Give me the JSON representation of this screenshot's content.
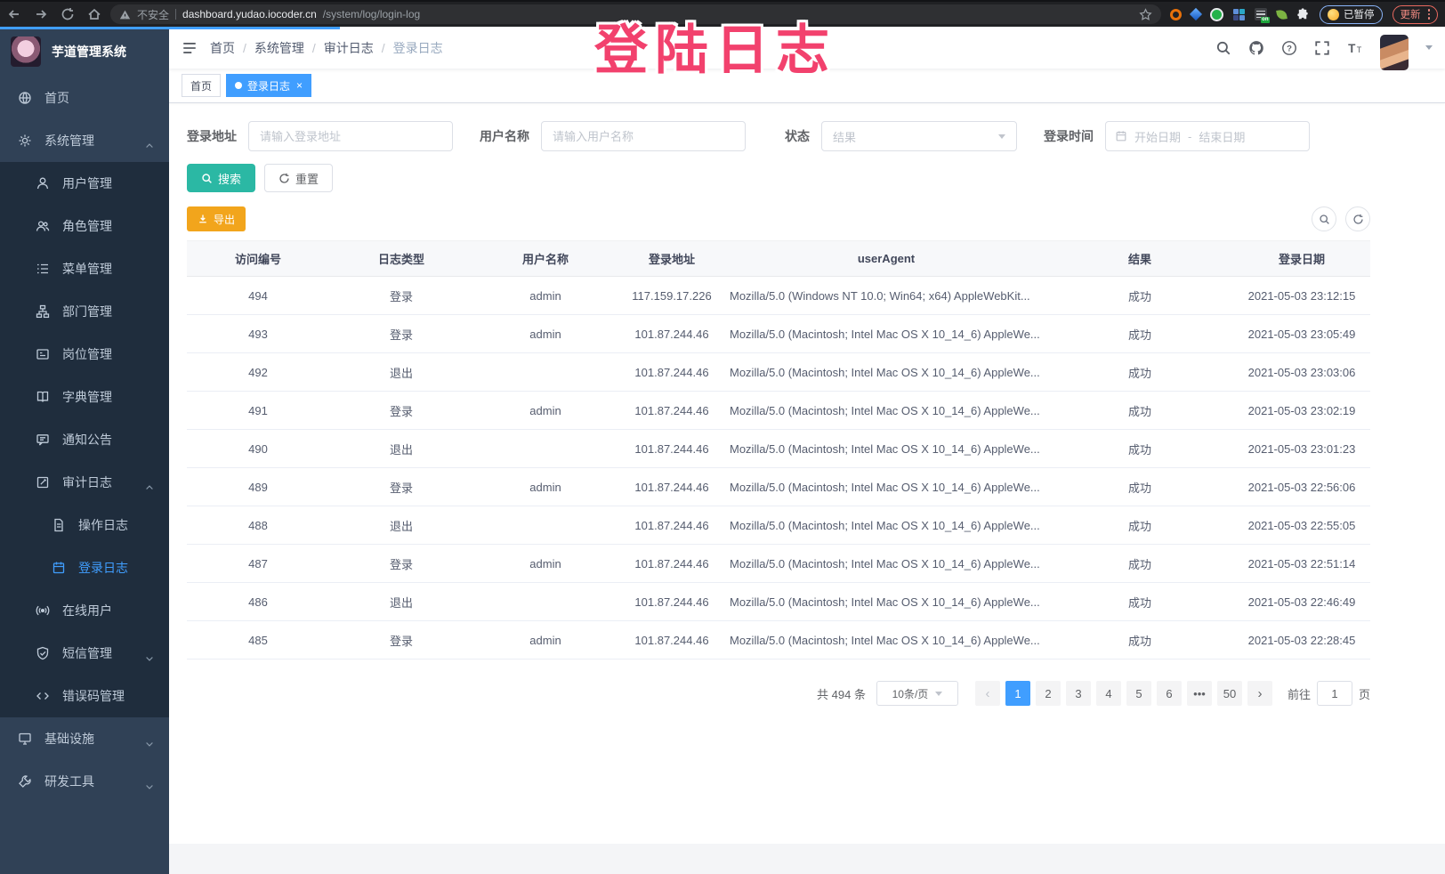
{
  "colors": {
    "accent": "#409eff",
    "teal": "#2bb8a4",
    "warn": "#f2a51c",
    "pink": "#f2416d",
    "menu_bg": "#304156",
    "submenu_bg": "#1f2d3d",
    "menu_text": "#bfcbd9"
  },
  "browser": {
    "security_label": "不安全",
    "url_host": "dashboard.yudao.iocoder.cn",
    "url_path": "/system/log/login-log",
    "paused_badge": "已暂停",
    "update_button": "更新"
  },
  "overlay": {
    "text": "登陆日志"
  },
  "sidebar": {
    "app_title": "芋道管理系统",
    "items": [
      {
        "label": "首页",
        "icon": "dashboard-icon",
        "depth": 1
      },
      {
        "label": "系统管理",
        "icon": "gear-icon",
        "depth": 1,
        "arrow": "up"
      },
      {
        "label": "用户管理",
        "icon": "user-icon",
        "depth": 2
      },
      {
        "label": "角色管理",
        "icon": "users-icon",
        "depth": 2
      },
      {
        "label": "菜单管理",
        "icon": "menu-list-icon",
        "depth": 2
      },
      {
        "label": "部门管理",
        "icon": "org-tree-icon",
        "depth": 2
      },
      {
        "label": "岗位管理",
        "icon": "badge-icon",
        "depth": 2
      },
      {
        "label": "字典管理",
        "icon": "dictionary-icon",
        "depth": 2
      },
      {
        "label": "通知公告",
        "icon": "announcement-icon",
        "depth": 2
      },
      {
        "label": "审计日志",
        "icon": "audit-log-icon",
        "depth": 2,
        "arrow": "up"
      },
      {
        "label": "操作日志",
        "icon": "operation-log-icon",
        "depth": 3
      },
      {
        "label": "登录日志",
        "icon": "login-log-icon",
        "depth": 3,
        "active": true
      },
      {
        "label": "在线用户",
        "icon": "online-users-icon",
        "depth": 2
      },
      {
        "label": "短信管理",
        "icon": "sms-icon",
        "depth": 2,
        "arrow": "down"
      },
      {
        "label": "错误码管理",
        "icon": "error-code-icon",
        "depth": 2
      },
      {
        "label": "基础设施",
        "icon": "infrastructure-icon",
        "depth": 1,
        "arrow": "down"
      },
      {
        "label": "研发工具",
        "icon": "devtools-icon",
        "depth": 1,
        "arrow": "down"
      }
    ]
  },
  "breadcrumb": [
    "首页",
    "系统管理",
    "审计日志",
    "登录日志"
  ],
  "tabs": [
    {
      "label": "首页",
      "active": false,
      "closable": false
    },
    {
      "label": "登录日志",
      "active": true,
      "closable": true
    }
  ],
  "filters": {
    "address": {
      "label": "登录地址",
      "placeholder": "请输入登录地址"
    },
    "username": {
      "label": "用户名称",
      "placeholder": "请输入用户名称"
    },
    "status": {
      "label": "状态",
      "placeholder": "结果"
    },
    "time": {
      "label": "登录时间",
      "start_placeholder": "开始日期",
      "separator": "-",
      "end_placeholder": "结束日期"
    }
  },
  "actions": {
    "search": "搜索",
    "reset": "重置",
    "export": "导出"
  },
  "table": {
    "columns": [
      "访问编号",
      "日志类型",
      "用户名称",
      "登录地址",
      "userAgent",
      "结果",
      "登录日期"
    ],
    "rows": [
      {
        "id": "494",
        "type": "登录",
        "user": "admin",
        "ip": "117.159.17.226",
        "agent": "Mozilla/5.0 (Windows NT 10.0; Win64; x64) AppleWebKit...",
        "result": "成功",
        "date": "2021-05-03 23:12:15"
      },
      {
        "id": "493",
        "type": "登录",
        "user": "admin",
        "ip": "101.87.244.46",
        "agent": "Mozilla/5.0 (Macintosh; Intel Mac OS X 10_14_6) AppleWe...",
        "result": "成功",
        "date": "2021-05-03 23:05:49"
      },
      {
        "id": "492",
        "type": "退出",
        "user": "",
        "ip": "101.87.244.46",
        "agent": "Mozilla/5.0 (Macintosh; Intel Mac OS X 10_14_6) AppleWe...",
        "result": "成功",
        "date": "2021-05-03 23:03:06"
      },
      {
        "id": "491",
        "type": "登录",
        "user": "admin",
        "ip": "101.87.244.46",
        "agent": "Mozilla/5.0 (Macintosh; Intel Mac OS X 10_14_6) AppleWe...",
        "result": "成功",
        "date": "2021-05-03 23:02:19"
      },
      {
        "id": "490",
        "type": "退出",
        "user": "",
        "ip": "101.87.244.46",
        "agent": "Mozilla/5.0 (Macintosh; Intel Mac OS X 10_14_6) AppleWe...",
        "result": "成功",
        "date": "2021-05-03 23:01:23"
      },
      {
        "id": "489",
        "type": "登录",
        "user": "admin",
        "ip": "101.87.244.46",
        "agent": "Mozilla/5.0 (Macintosh; Intel Mac OS X 10_14_6) AppleWe...",
        "result": "成功",
        "date": "2021-05-03 22:56:06"
      },
      {
        "id": "488",
        "type": "退出",
        "user": "",
        "ip": "101.87.244.46",
        "agent": "Mozilla/5.0 (Macintosh; Intel Mac OS X 10_14_6) AppleWe...",
        "result": "成功",
        "date": "2021-05-03 22:55:05"
      },
      {
        "id": "487",
        "type": "登录",
        "user": "admin",
        "ip": "101.87.244.46",
        "agent": "Mozilla/5.0 (Macintosh; Intel Mac OS X 10_14_6) AppleWe...",
        "result": "成功",
        "date": "2021-05-03 22:51:14"
      },
      {
        "id": "486",
        "type": "退出",
        "user": "",
        "ip": "101.87.244.46",
        "agent": "Mozilla/5.0 (Macintosh; Intel Mac OS X 10_14_6) AppleWe...",
        "result": "成功",
        "date": "2021-05-03 22:46:49"
      },
      {
        "id": "485",
        "type": "登录",
        "user": "admin",
        "ip": "101.87.244.46",
        "agent": "Mozilla/5.0 (Macintosh; Intel Mac OS X 10_14_6) AppleWe...",
        "result": "成功",
        "date": "2021-05-03 22:28:45"
      }
    ]
  },
  "pagination": {
    "total": "共 494 条",
    "page_size": "10条/页",
    "pages": [
      "1",
      "2",
      "3",
      "4",
      "5",
      "6",
      "•••",
      "50"
    ],
    "active_page": "1",
    "goto_label": "前往",
    "goto_value": "1",
    "page_label": "页"
  }
}
